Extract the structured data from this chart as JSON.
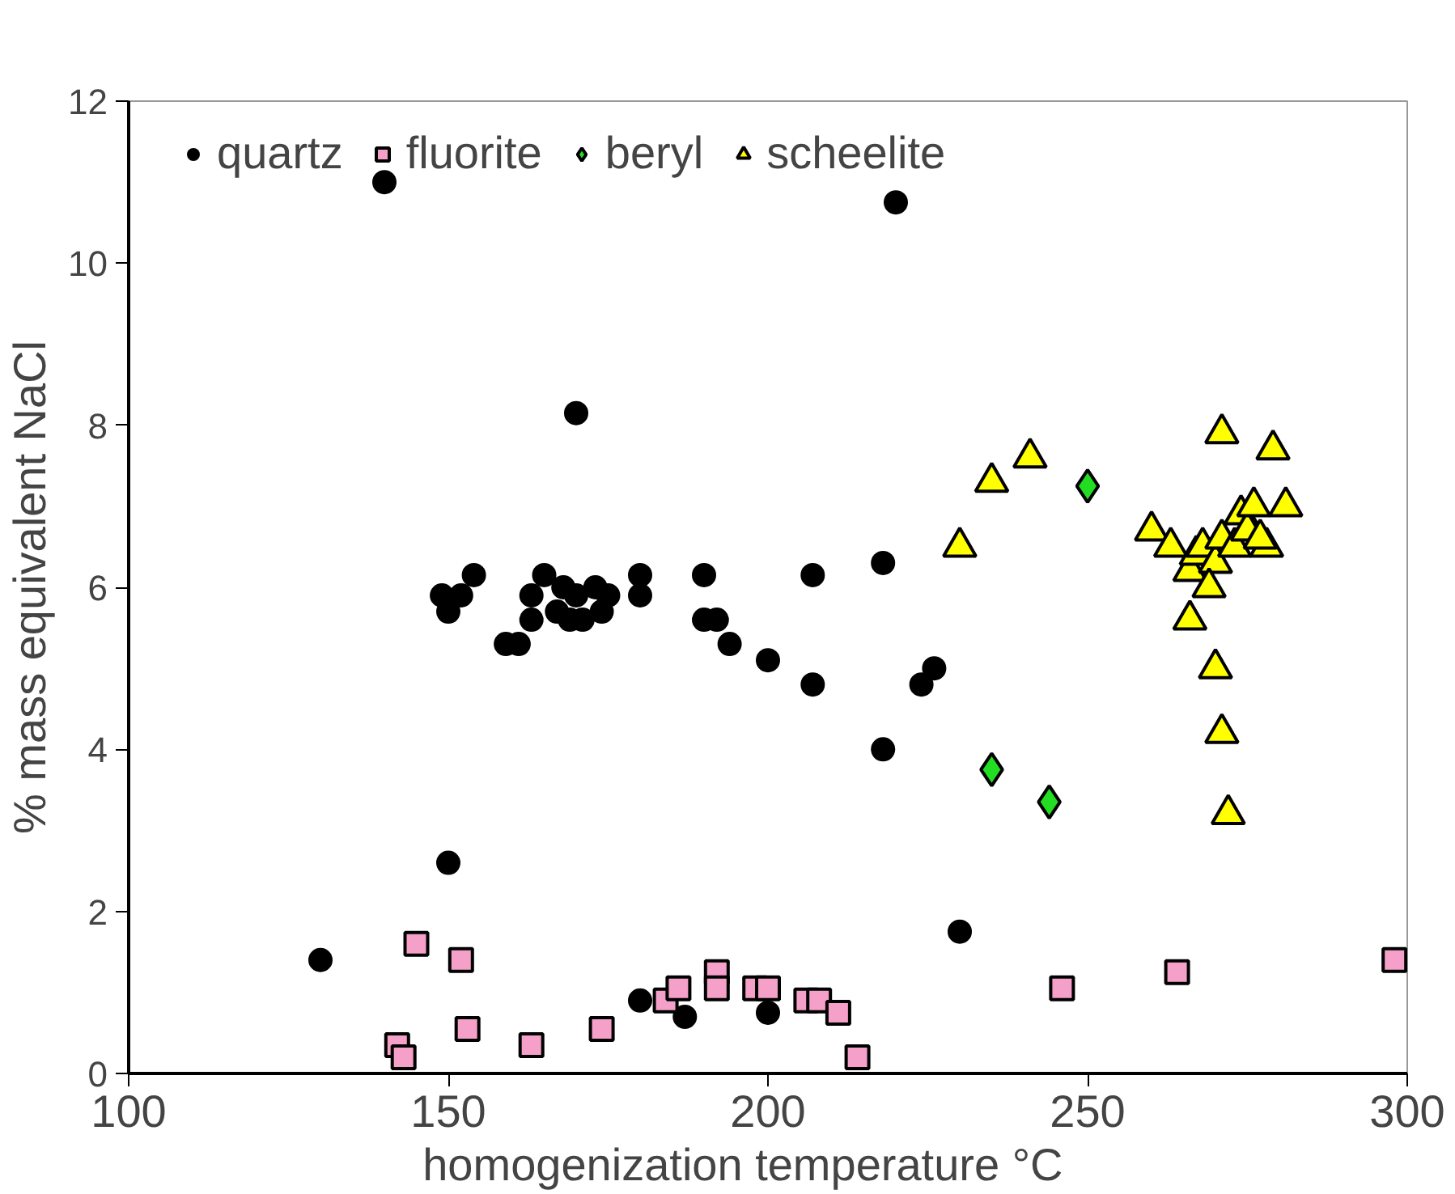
{
  "chart_data": {
    "type": "scatter",
    "xlabel": "homogenization temperature     °C",
    "ylabel": "% mass equivalent NaCl",
    "xlim": [
      100,
      300
    ],
    "ylim": [
      0,
      12
    ],
    "xticks": [
      100,
      150,
      200,
      250,
      300
    ],
    "yticks": [
      0,
      2,
      4,
      6,
      8,
      10,
      12
    ],
    "grid": false,
    "legend": "top",
    "series": [
      {
        "name": "quartz",
        "color": "#000000",
        "marker": "circle",
        "x": [
          140,
          220,
          170,
          149,
          150,
          152,
          154,
          159,
          161,
          163,
          163,
          165,
          167,
          168,
          169,
          170,
          171,
          173,
          174,
          175,
          180,
          180,
          190,
          190,
          192,
          194,
          200,
          207,
          207,
          218,
          218,
          224,
          226,
          150,
          130,
          230,
          180,
          187,
          200
        ],
        "values": [
          11,
          10.75,
          8.15,
          5.9,
          5.7,
          5.9,
          6.15,
          5.3,
          5.3,
          5.6,
          5.9,
          6.15,
          5.7,
          6.0,
          5.6,
          5.9,
          5.6,
          6.0,
          5.7,
          5.9,
          6.15,
          5.9,
          6.15,
          5.6,
          5.6,
          5.3,
          5.1,
          6.15,
          4.8,
          6.3,
          4.0,
          4.8,
          5.0,
          2.6,
          1.4,
          1.75,
          0.9,
          0.7,
          0.75
        ]
      },
      {
        "name": "fluorite",
        "color": "#f4a0c8",
        "marker": "square",
        "x": [
          145,
          152,
          142,
          143,
          153,
          163,
          174,
          184,
          186,
          192,
          192,
          198,
          200,
          206,
          208,
          211,
          214,
          246,
          264,
          298
        ],
        "values": [
          1.6,
          1.4,
          0.35,
          0.2,
          0.55,
          0.35,
          0.55,
          0.9,
          1.05,
          1.25,
          1.05,
          1.05,
          1.05,
          0.9,
          0.9,
          0.75,
          0.2,
          1.05,
          1.25,
          1.4
        ]
      },
      {
        "name": "beryl",
        "color": "#22dd22",
        "marker": "diamond",
        "x": [
          250,
          235,
          244
        ],
        "values": [
          7.25,
          3.75,
          3.35
        ]
      },
      {
        "name": "scheelite",
        "color": "#ffff00",
        "marker": "triangle",
        "x": [
          230,
          235,
          241,
          271,
          279,
          260,
          263,
          266,
          267,
          268,
          270,
          271,
          273,
          274,
          275,
          276,
          278,
          281,
          266,
          269,
          270,
          271,
          272,
          277
        ],
        "values": [
          6.5,
          7.3,
          7.6,
          7.9,
          7.7,
          6.7,
          6.5,
          6.2,
          6.4,
          6.5,
          6.3,
          6.6,
          6.5,
          6.9,
          6.7,
          7.0,
          6.5,
          7.0,
          5.6,
          6.0,
          5.0,
          4.2,
          3.2,
          6.6
        ]
      }
    ]
  }
}
